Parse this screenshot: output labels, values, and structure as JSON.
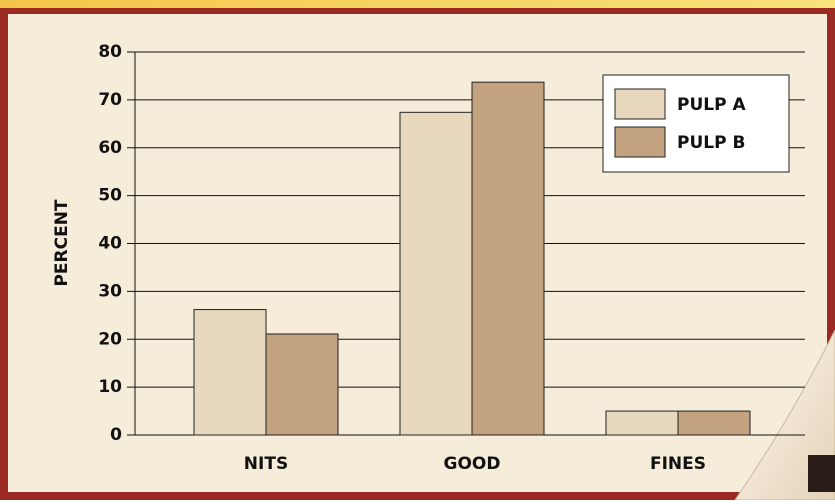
{
  "chart_data": {
    "type": "bar",
    "y_label": "PERCENT",
    "categories": [
      "NITS",
      "GOOD",
      "FINES"
    ],
    "series": [
      {
        "name": "PULP A",
        "color": "#e8d8be",
        "values": [
          26.2,
          67.4,
          5.0
        ]
      },
      {
        "name": "PULP B",
        "color": "#c3a37f",
        "values": [
          21.1,
          73.7,
          5.0
        ]
      }
    ],
    "ylim": [
      0,
      80
    ],
    "yticks": [
      0,
      10,
      20,
      30,
      40,
      50,
      60,
      70,
      80
    ],
    "grid": true,
    "legend": "top-right"
  }
}
